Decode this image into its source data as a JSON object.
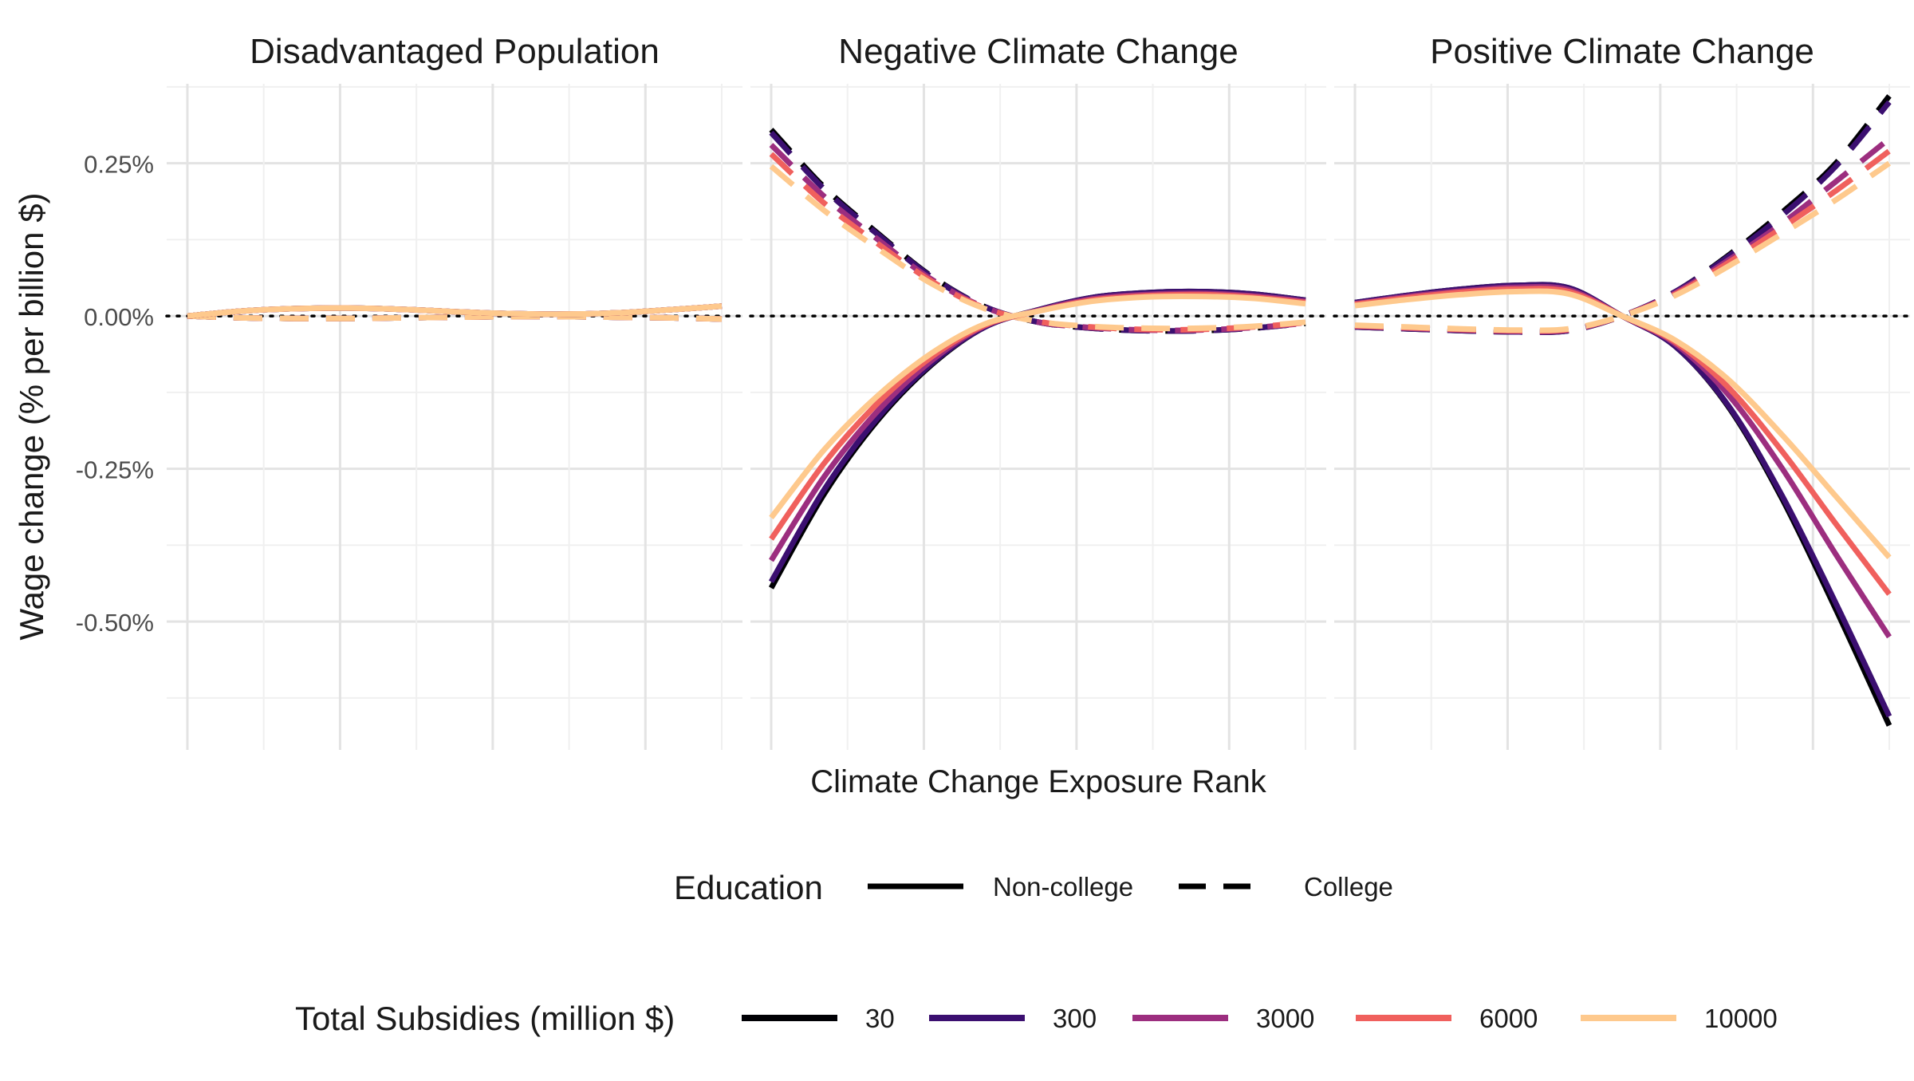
{
  "chart_data": {
    "type": "line",
    "facets": [
      "Disadvantaged Population",
      "Negative Climate Change",
      "Positive Climate Change"
    ],
    "xlabel": "Climate Change Exposure Rank",
    "ylabel": "Wage change (% per billion $)",
    "x": [
      0,
      0.1,
      0.2,
      0.3,
      0.4,
      0.5,
      0.6,
      0.7,
      0.8,
      0.9,
      1.0
    ],
    "xlim": [
      0,
      1
    ],
    "ylim": [
      -0.71,
      0.38
    ],
    "yticks": [
      0.25,
      0.0,
      -0.25,
      -0.5
    ],
    "ytick_labels": [
      "0.25%",
      "0.00%",
      "-0.25%",
      "-0.50%"
    ],
    "grid": true,
    "reference_line_y": 0,
    "subsidy_colors": [
      "#000004",
      "#3b0f70",
      "#9c2e7f",
      "#f0605d",
      "#fec98d"
    ],
    "series": [
      {
        "facet": 0,
        "education": "Non-college",
        "subsidy": "30",
        "values": [
          0.0,
          0.008,
          0.012,
          0.013,
          0.011,
          0.007,
          0.004,
          0.003,
          0.005,
          0.01,
          0.016
        ]
      },
      {
        "facet": 0,
        "education": "Non-college",
        "subsidy": "300",
        "values": [
          0.0,
          0.008,
          0.012,
          0.013,
          0.011,
          0.007,
          0.004,
          0.003,
          0.005,
          0.01,
          0.016
        ]
      },
      {
        "facet": 0,
        "education": "Non-college",
        "subsidy": "3000",
        "values": [
          0.0,
          0.008,
          0.012,
          0.013,
          0.011,
          0.007,
          0.004,
          0.003,
          0.005,
          0.01,
          0.016
        ]
      },
      {
        "facet": 0,
        "education": "Non-college",
        "subsidy": "6000",
        "values": [
          0.0,
          0.008,
          0.012,
          0.013,
          0.011,
          0.007,
          0.004,
          0.003,
          0.005,
          0.01,
          0.016
        ]
      },
      {
        "facet": 0,
        "education": "Non-college",
        "subsidy": "10000",
        "values": [
          0.0,
          0.008,
          0.012,
          0.013,
          0.011,
          0.007,
          0.004,
          0.003,
          0.005,
          0.01,
          0.016
        ]
      },
      {
        "facet": 0,
        "education": "College",
        "subsidy": "30",
        "values": [
          0.0,
          -0.003,
          -0.004,
          -0.004,
          -0.003,
          -0.002,
          -0.001,
          -0.001,
          -0.002,
          -0.003,
          -0.005
        ]
      },
      {
        "facet": 0,
        "education": "College",
        "subsidy": "300",
        "values": [
          0.0,
          -0.003,
          -0.004,
          -0.004,
          -0.003,
          -0.002,
          -0.001,
          -0.001,
          -0.002,
          -0.003,
          -0.005
        ]
      },
      {
        "facet": 0,
        "education": "College",
        "subsidy": "3000",
        "values": [
          0.0,
          -0.003,
          -0.004,
          -0.004,
          -0.003,
          -0.002,
          -0.001,
          -0.001,
          -0.002,
          -0.003,
          -0.005
        ]
      },
      {
        "facet": 0,
        "education": "College",
        "subsidy": "6000",
        "values": [
          0.0,
          -0.003,
          -0.004,
          -0.004,
          -0.003,
          -0.002,
          -0.001,
          -0.001,
          -0.002,
          -0.003,
          -0.005
        ]
      },
      {
        "facet": 0,
        "education": "College",
        "subsidy": "10000",
        "values": [
          0.0,
          -0.003,
          -0.004,
          -0.004,
          -0.003,
          -0.002,
          -0.001,
          -0.001,
          -0.002,
          -0.003,
          -0.005
        ]
      },
      {
        "facet": 1,
        "education": "Non-college",
        "subsidy": "30",
        "values": [
          -0.445,
          -0.29,
          -0.17,
          -0.08,
          -0.018,
          0.01,
          0.03,
          0.038,
          0.04,
          0.036,
          0.026
        ]
      },
      {
        "facet": 1,
        "education": "Non-college",
        "subsidy": "300",
        "values": [
          -0.435,
          -0.283,
          -0.166,
          -0.078,
          -0.018,
          0.01,
          0.03,
          0.038,
          0.04,
          0.036,
          0.026
        ]
      },
      {
        "facet": 1,
        "education": "Non-college",
        "subsidy": "3000",
        "values": [
          -0.4,
          -0.262,
          -0.155,
          -0.073,
          -0.016,
          0.009,
          0.028,
          0.035,
          0.037,
          0.033,
          0.024
        ]
      },
      {
        "facet": 1,
        "education": "Non-college",
        "subsidy": "6000",
        "values": [
          -0.365,
          -0.24,
          -0.142,
          -0.067,
          -0.015,
          0.008,
          0.026,
          0.033,
          0.035,
          0.031,
          0.022
        ]
      },
      {
        "facet": 1,
        "education": "Non-college",
        "subsidy": "10000",
        "values": [
          -0.33,
          -0.218,
          -0.13,
          -0.061,
          -0.013,
          0.008,
          0.024,
          0.031,
          0.032,
          0.029,
          0.02
        ]
      },
      {
        "facet": 1,
        "education": "College",
        "subsidy": "30",
        "values": [
          0.305,
          0.21,
          0.135,
          0.065,
          0.015,
          -0.01,
          -0.02,
          -0.024,
          -0.024,
          -0.02,
          -0.012
        ]
      },
      {
        "facet": 1,
        "education": "College",
        "subsidy": "300",
        "values": [
          0.3,
          0.207,
          0.133,
          0.064,
          0.015,
          -0.01,
          -0.02,
          -0.024,
          -0.024,
          -0.02,
          -0.012
        ]
      },
      {
        "facet": 1,
        "education": "College",
        "subsidy": "3000",
        "values": [
          0.28,
          0.195,
          0.125,
          0.06,
          0.014,
          -0.01,
          -0.019,
          -0.023,
          -0.023,
          -0.019,
          -0.012
        ]
      },
      {
        "facet": 1,
        "education": "College",
        "subsidy": "6000",
        "values": [
          0.265,
          0.184,
          0.118,
          0.057,
          0.013,
          -0.009,
          -0.018,
          -0.022,
          -0.022,
          -0.018,
          -0.011
        ]
      },
      {
        "facet": 1,
        "education": "College",
        "subsidy": "10000",
        "values": [
          0.245,
          0.172,
          0.11,
          0.053,
          0.012,
          -0.009,
          -0.017,
          -0.02,
          -0.02,
          -0.017,
          -0.01
        ]
      },
      {
        "facet": 2,
        "education": "Non-college",
        "subsidy": "30",
        "values": [
          0.022,
          0.034,
          0.044,
          0.05,
          0.046,
          0.0,
          -0.05,
          -0.15,
          -0.3,
          -0.48,
          -0.67
        ]
      },
      {
        "facet": 2,
        "education": "Non-college",
        "subsidy": "300",
        "values": [
          0.022,
          0.034,
          0.044,
          0.05,
          0.046,
          0.0,
          -0.05,
          -0.148,
          -0.295,
          -0.47,
          -0.655
        ]
      },
      {
        "facet": 2,
        "education": "Non-college",
        "subsidy": "3000",
        "values": [
          0.02,
          0.032,
          0.041,
          0.047,
          0.043,
          0.0,
          -0.046,
          -0.13,
          -0.25,
          -0.39,
          -0.525
        ]
      },
      {
        "facet": 2,
        "education": "Non-college",
        "subsidy": "6000",
        "values": [
          0.019,
          0.03,
          0.039,
          0.044,
          0.04,
          0.0,
          -0.043,
          -0.118,
          -0.222,
          -0.34,
          -0.455
        ]
      },
      {
        "facet": 2,
        "education": "Non-college",
        "subsidy": "10000",
        "values": [
          0.017,
          0.027,
          0.035,
          0.04,
          0.036,
          0.0,
          -0.04,
          -0.105,
          -0.195,
          -0.295,
          -0.395
        ]
      },
      {
        "facet": 2,
        "education": "College",
        "subsidy": "30",
        "values": [
          -0.018,
          -0.021,
          -0.024,
          -0.026,
          -0.024,
          0.0,
          0.04,
          0.1,
          0.17,
          0.25,
          0.36
        ]
      },
      {
        "facet": 2,
        "education": "College",
        "subsidy": "300",
        "values": [
          -0.018,
          -0.021,
          -0.024,
          -0.026,
          -0.024,
          0.0,
          0.04,
          0.098,
          0.165,
          0.245,
          0.35
        ]
      },
      {
        "facet": 2,
        "education": "College",
        "subsidy": "3000",
        "values": [
          -0.017,
          -0.02,
          -0.023,
          -0.025,
          -0.023,
          0.0,
          0.038,
          0.092,
          0.152,
          0.22,
          0.29
        ]
      },
      {
        "facet": 2,
        "education": "College",
        "subsidy": "6000",
        "values": [
          -0.016,
          -0.019,
          -0.022,
          -0.024,
          -0.022,
          0.0,
          0.036,
          0.088,
          0.145,
          0.205,
          0.27
        ]
      },
      {
        "facet": 2,
        "education": "College",
        "subsidy": "10000",
        "values": [
          -0.015,
          -0.018,
          -0.021,
          -0.023,
          -0.021,
          0.0,
          0.034,
          0.082,
          0.135,
          0.19,
          0.25
        ]
      }
    ],
    "legend": {
      "placement": "bottom",
      "education_title": "Education",
      "education_items": [
        {
          "label": "Non-college",
          "style": "solid"
        },
        {
          "label": "College",
          "style": "dashed"
        }
      ],
      "subsidy_title": "Total Subsidies (million $)",
      "subsidy_items": [
        "30",
        "300",
        "3000",
        "6000",
        "10000"
      ]
    }
  }
}
